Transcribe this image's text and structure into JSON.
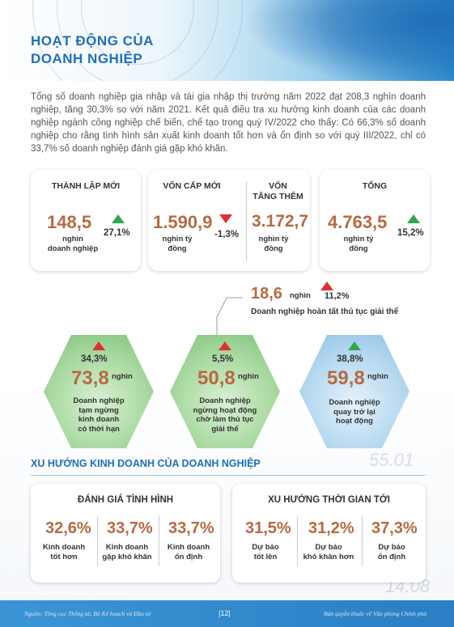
{
  "title_line1": "HOẠT ĐỘNG CỦA",
  "title_line2": "DOANH NGHIỆP",
  "intro": "Tổng số doanh nghiệp gia nhập và tái gia nhập thị trường năm 2022 đạt 208,3 nghìn doanh nghiệp, tăng 30,3% so với năm 2021. Kết quả điều tra xu hướng kinh doanh của các doanh nghiệp ngành công nghiệp chế biến, chế tạo trong quý IV/2022 cho thấy: Có 66,3% số doanh nghiệp cho rằng tình hình sản xuất kinh doanh tốt hơn và ổn định so với quý III/2022, chỉ có 33,7% số doanh nghiệp đánh giá gặp khó khăn.",
  "cards": {
    "new": {
      "label": "THÀNH LẬP MỚI",
      "value": "148,5",
      "unit1": "nghìn",
      "unit2": "doanh nghiệp",
      "pct": "27,1%",
      "trend": "up"
    },
    "capital_new": {
      "label": "VỐN CẤP MỚI",
      "value": "1.590,9",
      "unit1": "nghìn tỷ",
      "unit2": "đồng",
      "pct": "-1,3%",
      "trend": "down"
    },
    "capital_add": {
      "label1": "VỐN",
      "label2": "TĂNG THÊM",
      "value": "3.172,7",
      "unit1": "nghìn tỷ",
      "unit2": "đồng"
    },
    "total": {
      "label": "TỔNG",
      "value": "4.763,5",
      "unit1": "nghìn tỷ",
      "unit2": "đồng",
      "pct": "15,2%",
      "trend": "up"
    }
  },
  "dissolved": {
    "value": "18,6",
    "unit": "nghìn",
    "pct": "11,2%",
    "label": "Doanh nghiệp hoàn tất thủ tục giải thể",
    "trend": "up-red"
  },
  "hexes": [
    {
      "pct": "34,3%",
      "value": "73,8",
      "unit": "nghìn",
      "label": [
        "Doanh nghiệp",
        "tạm ngừng",
        "kinh doanh",
        "có thời hạn"
      ],
      "trend": "up-red"
    },
    {
      "pct": "5,5%",
      "value": "50,8",
      "unit": "nghìn",
      "label": [
        "Doanh nghiệp",
        "ngừng hoạt động",
        "chờ làm thủ tục",
        "giải thể"
      ],
      "trend": "up-red"
    },
    {
      "pct": "38,8%",
      "value": "59,8",
      "unit": "nghìn",
      "label": [
        "Doanh nghiệp",
        "quay trở lại",
        "hoạt động"
      ],
      "trend": "up"
    }
  ],
  "deco": {
    "n1": "55.01",
    "n2": "14.08"
  },
  "trend_section": {
    "title": "XU HƯỚNG KINH DOANH CỦA DOANH NGHIỆP",
    "assessment": {
      "title": "ĐÁNH GIÁ TÌNH HÌNH",
      "items": [
        {
          "value": "32,6%",
          "label": [
            "Kinh doanh",
            "tốt hơn"
          ]
        },
        {
          "value": "33,7%",
          "label": [
            "Kinh doanh",
            "gặp khó khăn"
          ]
        },
        {
          "value": "33,7%",
          "label": [
            "Kinh doanh",
            "ổn định"
          ]
        }
      ]
    },
    "outlook": {
      "title": "XU HƯỚNG THỜI GIAN TỚI",
      "items": [
        {
          "value": "31,5%",
          "label": [
            "Dự báo",
            "tốt lên"
          ]
        },
        {
          "value": "31,2%",
          "label": [
            "Dự báo",
            "khó khăn hơn"
          ]
        },
        {
          "value": "37,3%",
          "label": [
            "Dự báo",
            "ổn định"
          ]
        }
      ]
    }
  },
  "footer": {
    "source": "Nguồn: Tổng cục Thống kê, Bộ Kế hoạch và Đầu tư",
    "page": "|12|",
    "copyright": "Bản quyền thuộc về Văn phòng Chính phủ"
  },
  "colors": {
    "accent": "#1f6fb8",
    "value": "#b66a42",
    "up": "#2fa84f",
    "down": "#e03030"
  }
}
